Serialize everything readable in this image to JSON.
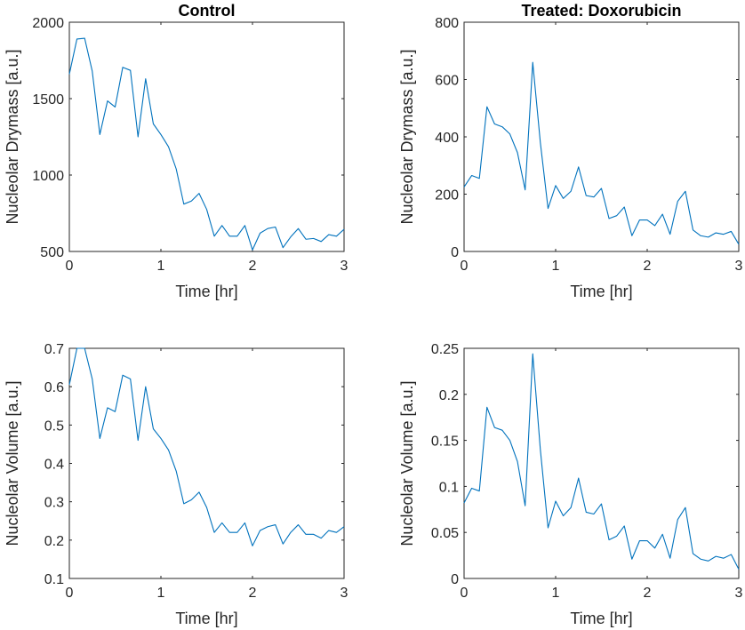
{
  "chart_data": [
    {
      "type": "line",
      "title": "Control",
      "xlabel": "Time [hr]",
      "ylabel": "Nucleolar Drymass [a.u.]",
      "xlim": [
        0,
        3
      ],
      "ylim": [
        500,
        2000
      ],
      "xticks": [
        0,
        1,
        2,
        3
      ],
      "yticks": [
        500,
        1000,
        1500,
        2000
      ],
      "color": "#0072BD",
      "x": [
        0,
        0.083,
        0.167,
        0.25,
        0.333,
        0.417,
        0.5,
        0.583,
        0.667,
        0.75,
        0.833,
        0.917,
        1.0,
        1.083,
        1.167,
        1.25,
        1.333,
        1.417,
        1.5,
        1.583,
        1.667,
        1.75,
        1.833,
        1.917,
        2.0,
        2.083,
        2.167,
        2.25,
        2.333,
        2.417,
        2.5,
        2.583,
        2.667,
        2.75,
        2.833,
        2.917,
        3.0
      ],
      "y": [
        1660,
        1890,
        1895,
        1680,
        1265,
        1485,
        1445,
        1705,
        1685,
        1250,
        1630,
        1335,
        1265,
        1185,
        1040,
        810,
        830,
        880,
        775,
        600,
        670,
        600,
        600,
        670,
        510,
        620,
        650,
        660,
        525,
        595,
        650,
        580,
        585,
        565,
        610,
        600,
        645
      ]
    },
    {
      "type": "line",
      "title": "Treated: Doxorubicin",
      "xlabel": "Time [hr]",
      "ylabel": "Nucleolar Drymass [a.u.]",
      "xlim": [
        0,
        3
      ],
      "ylim": [
        0,
        800
      ],
      "xticks": [
        0,
        1,
        2,
        3
      ],
      "yticks": [
        0,
        200,
        400,
        600,
        800
      ],
      "color": "#0072BD",
      "x": [
        0,
        0.083,
        0.167,
        0.25,
        0.333,
        0.417,
        0.5,
        0.583,
        0.667,
        0.75,
        0.833,
        0.917,
        1.0,
        1.083,
        1.167,
        1.25,
        1.333,
        1.417,
        1.5,
        1.583,
        1.667,
        1.75,
        1.833,
        1.917,
        2.0,
        2.083,
        2.167,
        2.25,
        2.333,
        2.417,
        2.5,
        2.583,
        2.667,
        2.75,
        2.833,
        2.917,
        3.0
      ],
      "y": [
        225,
        265,
        255,
        505,
        445,
        435,
        410,
        345,
        215,
        660,
        380,
        150,
        230,
        185,
        210,
        295,
        195,
        190,
        220,
        115,
        125,
        155,
        55,
        110,
        110,
        90,
        130,
        60,
        175,
        210,
        75,
        55,
        50,
        65,
        60,
        70,
        25
      ]
    },
    {
      "type": "line",
      "title": "",
      "xlabel": "Time [hr]",
      "ylabel": "Nucleolar Volume [a.u.]",
      "xlim": [
        0,
        3
      ],
      "ylim": [
        0.1,
        0.7
      ],
      "xticks": [
        0,
        1,
        2,
        3
      ],
      "yticks": [
        0.1,
        0.2,
        0.3,
        0.4,
        0.5,
        0.6,
        0.7
      ],
      "color": "#0072BD",
      "x": [
        0,
        0.083,
        0.167,
        0.25,
        0.333,
        0.417,
        0.5,
        0.583,
        0.667,
        0.75,
        0.833,
        0.917,
        1.0,
        1.083,
        1.167,
        1.25,
        1.333,
        1.417,
        1.5,
        1.583,
        1.667,
        1.75,
        1.833,
        1.917,
        2.0,
        2.083,
        2.167,
        2.25,
        2.333,
        2.417,
        2.5,
        2.583,
        2.667,
        2.75,
        2.833,
        2.917,
        3.0
      ],
      "y": [
        0.605,
        0.7,
        0.7,
        0.62,
        0.465,
        0.545,
        0.535,
        0.63,
        0.62,
        0.46,
        0.6,
        0.49,
        0.465,
        0.435,
        0.38,
        0.295,
        0.305,
        0.325,
        0.285,
        0.22,
        0.245,
        0.22,
        0.22,
        0.245,
        0.185,
        0.225,
        0.235,
        0.24,
        0.19,
        0.22,
        0.24,
        0.215,
        0.215,
        0.205,
        0.225,
        0.22,
        0.235
      ]
    },
    {
      "type": "line",
      "title": "",
      "xlabel": "Time [hr]",
      "ylabel": "Nucleolar Volume [a.u.]",
      "xlim": [
        0,
        3
      ],
      "ylim": [
        0,
        0.25
      ],
      "xticks": [
        0,
        1,
        2,
        3
      ],
      "yticks": [
        0,
        0.05,
        0.1,
        0.15,
        0.2,
        0.25
      ],
      "color": "#0072BD",
      "x": [
        0,
        0.083,
        0.167,
        0.25,
        0.333,
        0.417,
        0.5,
        0.583,
        0.667,
        0.75,
        0.833,
        0.917,
        1.0,
        1.083,
        1.167,
        1.25,
        1.333,
        1.417,
        1.5,
        1.583,
        1.667,
        1.75,
        1.833,
        1.917,
        2.0,
        2.083,
        2.167,
        2.25,
        2.333,
        2.417,
        2.5,
        2.583,
        2.667,
        2.75,
        2.833,
        2.917,
        3.0
      ],
      "y": [
        0.082,
        0.098,
        0.095,
        0.186,
        0.164,
        0.161,
        0.15,
        0.127,
        0.079,
        0.244,
        0.14,
        0.055,
        0.084,
        0.068,
        0.077,
        0.109,
        0.072,
        0.07,
        0.081,
        0.042,
        0.046,
        0.057,
        0.021,
        0.041,
        0.041,
        0.033,
        0.048,
        0.022,
        0.064,
        0.077,
        0.027,
        0.021,
        0.019,
        0.024,
        0.022,
        0.026,
        0.01
      ]
    }
  ]
}
